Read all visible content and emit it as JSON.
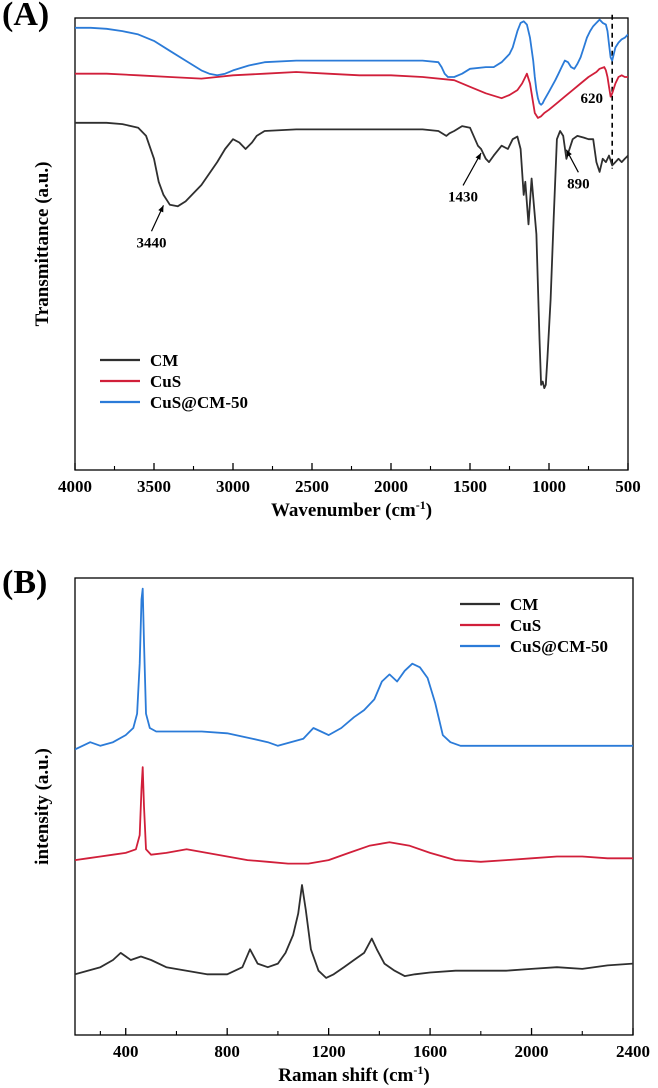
{
  "chart_data": [
    {
      "type": "line",
      "panel_label": "(A)",
      "title": "",
      "xlabel": "Wavenumber (cm",
      "xlabel_sup": "-1",
      "xlabel_end": ")",
      "ylabel": "Transmittance (a.u.)",
      "x_reversed": true,
      "xlim": [
        4000,
        500
      ],
      "ylim": [
        -22,
        116
      ],
      "x_ticks": [
        4000,
        3500,
        3000,
        2500,
        2000,
        1500,
        1000,
        500
      ],
      "y_tick_labels": false,
      "legend": {
        "position": "bottom-left",
        "entries": [
          "CM",
          "CuS",
          "CuS@CM-50"
        ]
      },
      "annotations": [
        {
          "text": "3440",
          "x": 3440,
          "series": "CM",
          "y": 60,
          "label_y": 46,
          "arrow": true
        },
        {
          "text": "1430",
          "x": 1430,
          "series": "CM",
          "y": 76,
          "label_y": 60,
          "arrow": true
        },
        {
          "text": "890",
          "x": 890,
          "series": "CM",
          "y": 77,
          "label_y": 64,
          "arrow": true
        },
        {
          "text": "620",
          "x": 620,
          "series": "CuS",
          "y": 92,
          "label_y": 90,
          "arrow": false
        }
      ],
      "dashed_marker": {
        "x": 600,
        "y_from": 70,
        "y_to": 117
      },
      "series": [
        {
          "name": "CM",
          "color": "#2f2f2f",
          "x": [
            4000,
            3800,
            3700,
            3600,
            3550,
            3500,
            3470,
            3440,
            3400,
            3350,
            3300,
            3200,
            3100,
            3050,
            3000,
            2960,
            2920,
            2880,
            2850,
            2800,
            2600,
            2400,
            2200,
            2000,
            1800,
            1700,
            1650,
            1630,
            1600,
            1550,
            1500,
            1450,
            1430,
            1400,
            1380,
            1350,
            1300,
            1260,
            1230,
            1200,
            1180,
            1160,
            1150,
            1130,
            1110,
            1080,
            1060,
            1050,
            1040,
            1030,
            1020,
            1010,
            990,
            970,
            950,
            930,
            910,
            890,
            870,
            850,
            820,
            780,
            750,
            720,
            700,
            680,
            660,
            640,
            620,
            600,
            580,
            560,
            540,
            520,
            500
          ],
          "y": [
            84,
            84,
            83.6,
            82.5,
            80,
            73,
            66,
            62,
            59,
            58.5,
            60,
            65,
            72,
            76,
            79,
            78,
            76,
            78,
            80,
            81.5,
            82,
            82,
            82,
            82,
            82,
            81.5,
            80,
            80.8,
            81.5,
            83,
            82.5,
            77,
            76,
            73,
            72,
            74,
            77,
            76,
            79,
            79.8,
            76,
            62,
            66,
            53,
            67,
            50,
            18,
            4,
            5,
            3,
            4,
            12,
            30,
            55,
            79,
            81.5,
            80,
            73,
            76,
            79,
            80,
            79.5,
            79,
            79,
            72,
            69,
            73,
            72,
            74,
            71,
            72,
            73,
            72,
            73,
            74
          ]
        },
        {
          "name": "CuS",
          "color": "#d11f3a",
          "x": [
            4000,
            3800,
            3600,
            3400,
            3200,
            3100,
            3000,
            2800,
            2600,
            2400,
            2200,
            2000,
            1800,
            1600,
            1500,
            1400,
            1300,
            1250,
            1200,
            1170,
            1150,
            1140,
            1120,
            1100,
            1090,
            1070,
            1050,
            1030,
            1000,
            950,
            900,
            850,
            800,
            750,
            700,
            680,
            650,
            640,
            630,
            620,
            610,
            600,
            580,
            560,
            540,
            520,
            500
          ],
          "y": [
            99,
            99,
            98.5,
            98,
            97.5,
            98,
            98.5,
            99,
            99.5,
            99,
            98.5,
            98.5,
            98,
            97,
            95,
            93,
            91.5,
            92.5,
            94,
            96,
            98,
            99,
            96,
            90,
            87,
            85.5,
            86,
            87,
            88,
            90,
            92,
            94,
            96,
            98,
            99.5,
            100.5,
            101,
            100,
            98,
            95,
            92,
            93,
            96,
            98,
            98.5,
            98,
            98
          ]
        },
        {
          "name": "CuS@CM-50",
          "color": "#2b7bd8",
          "x": [
            4000,
            3900,
            3800,
            3700,
            3600,
            3500,
            3400,
            3300,
            3200,
            3150,
            3100,
            3050,
            3000,
            2900,
            2800,
            2600,
            2400,
            2200,
            2000,
            1800,
            1700,
            1680,
            1660,
            1640,
            1600,
            1550,
            1500,
            1400,
            1350,
            1300,
            1250,
            1230,
            1200,
            1180,
            1160,
            1140,
            1120,
            1100,
            1090,
            1080,
            1070,
            1060,
            1050,
            1040,
            1030,
            1000,
            960,
            940,
            920,
            900,
            880,
            860,
            840,
            820,
            800,
            780,
            760,
            740,
            720,
            700,
            680,
            660,
            640,
            630,
            620,
            610,
            600,
            590,
            580,
            560,
            540,
            520,
            500
          ],
          "y": [
            113,
            113,
            112.7,
            112,
            111,
            109,
            106,
            103,
            100,
            99,
            98.5,
            99,
            100,
            101.5,
            102.5,
            103,
            103,
            103,
            103,
            103,
            102.5,
            101,
            99,
            98,
            98,
            99,
            100.5,
            101,
            101,
            102.5,
            105,
            107,
            112,
            114.5,
            115,
            114,
            110,
            103,
            98,
            94,
            91.5,
            90,
            89.5,
            90,
            91,
            93.5,
            97,
            99,
            101,
            103,
            102.5,
            101,
            100.5,
            102,
            104,
            107,
            110,
            112,
            113.5,
            114.5,
            115.5,
            114.5,
            114,
            112,
            108,
            104,
            103,
            105,
            107,
            108.5,
            109.5,
            110,
            111
          ]
        }
      ]
    },
    {
      "type": "line",
      "panel_label": "(B)",
      "title": "",
      "xlabel": "Raman shift (cm",
      "xlabel_sup": "-1",
      "xlabel_end": ")",
      "ylabel": "intensity (a.u.)",
      "x_reversed": false,
      "xlim": [
        200,
        2400
      ],
      "ylim": [
        -14,
        114
      ],
      "x_ticks": [
        400,
        800,
        1200,
        1600,
        2000,
        2400
      ],
      "y_tick_labels": false,
      "legend": {
        "position": "top-right",
        "entries": [
          "CM",
          "CuS",
          "CuS@CM-50"
        ]
      },
      "series": [
        {
          "name": "CM",
          "color": "#2f2f2f",
          "x": [
            200,
            250,
            300,
            350,
            380,
            420,
            460,
            500,
            560,
            640,
            720,
            800,
            860,
            890,
            920,
            960,
            1000,
            1030,
            1060,
            1080,
            1095,
            1110,
            1130,
            1160,
            1190,
            1220,
            1260,
            1300,
            1340,
            1370,
            1390,
            1420,
            1460,
            1500,
            1540,
            1600,
            1700,
            1800,
            1900,
            2000,
            2100,
            2200,
            2300,
            2400
          ],
          "y": [
            3,
            4,
            5,
            7,
            9,
            7,
            8,
            7,
            5,
            4,
            3,
            3,
            5,
            10,
            6,
            5,
            6,
            9,
            14,
            20,
            28,
            21,
            10,
            4,
            2,
            3,
            5,
            7,
            9,
            13,
            10,
            6,
            4,
            2.5,
            3,
            3.5,
            4,
            4,
            4,
            4.5,
            5,
            4.5,
            5.5,
            6
          ]
        },
        {
          "name": "CuS",
          "color": "#d11f3a",
          "x": [
            200,
            250,
            300,
            350,
            400,
            440,
            455,
            462,
            467,
            472,
            480,
            500,
            560,
            640,
            720,
            800,
            880,
            960,
            1040,
            1120,
            1200,
            1280,
            1360,
            1440,
            1520,
            1600,
            1700,
            1800,
            1900,
            2000,
            2100,
            2200,
            2300,
            2400
          ],
          "y": [
            35,
            35.5,
            36,
            36.5,
            37,
            38,
            42,
            55,
            61,
            50,
            38,
            36.5,
            37,
            38,
            37,
            36,
            35,
            34.5,
            34,
            34,
            35,
            37,
            39,
            40,
            39,
            37,
            35,
            34.5,
            35,
            35.5,
            36,
            36,
            35.5,
            35.5
          ]
        },
        {
          "name": "CuS@CM-50",
          "color": "#2b7bd8",
          "x": [
            200,
            230,
            260,
            300,
            350,
            400,
            430,
            445,
            455,
            462,
            467,
            472,
            480,
            495,
            520,
            600,
            700,
            800,
            900,
            960,
            1000,
            1050,
            1100,
            1140,
            1170,
            1200,
            1250,
            1300,
            1340,
            1380,
            1410,
            1440,
            1470,
            1500,
            1530,
            1560,
            1590,
            1620,
            1650,
            1680,
            1720,
            1800,
            1900,
            2000,
            2100,
            2200,
            2300,
            2400
          ],
          "y": [
            66,
            67,
            68,
            67,
            68,
            70,
            72,
            76,
            90,
            108,
            111,
            96,
            76,
            72,
            71,
            71,
            71,
            70.5,
            69,
            68,
            67,
            68,
            69,
            72,
            71,
            70,
            72,
            75,
            77,
            80,
            85,
            87,
            85,
            88,
            90,
            89,
            86,
            79,
            70,
            68,
            67,
            67,
            67,
            67,
            67,
            67,
            67,
            67
          ]
        }
      ]
    }
  ]
}
